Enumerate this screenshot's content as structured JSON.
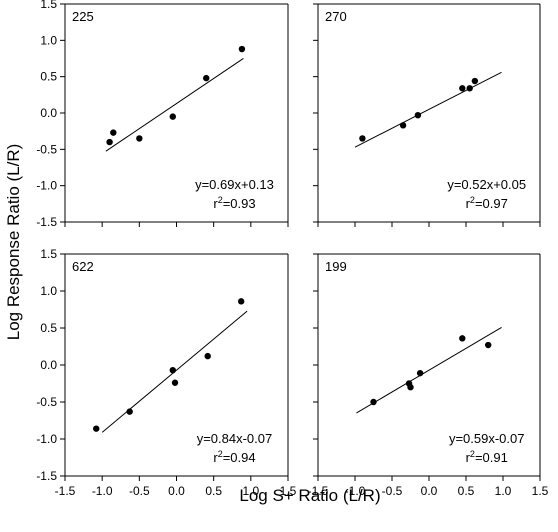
{
  "figure": {
    "xlabel": "Log S+ Ratio (L/R)",
    "ylabel": "Log Response Ratio (L/R)"
  },
  "chart_data": [
    {
      "type": "scatter",
      "panel_label": "225",
      "x": [
        -0.9,
        -0.85,
        -0.5,
        -0.05,
        0.4,
        0.88
      ],
      "y": [
        -0.4,
        -0.27,
        -0.35,
        -0.05,
        0.48,
        0.88
      ],
      "fit": {
        "slope": 0.69,
        "intercept": 0.13,
        "x_range": [
          -0.95,
          0.9
        ]
      },
      "equation": "y=0.69x+0.13",
      "r2_prefix": "r",
      "r2_sup": "2",
      "r2_value": "=0.93",
      "xlim": [
        -1.5,
        1.5
      ],
      "ylim": [
        -1.5,
        1.5
      ],
      "xticks": [
        "-1.5",
        "-1.0",
        "-0.5",
        "0.0",
        "0.5",
        "1.0",
        "1.5"
      ],
      "yticks": [
        "1.5",
        "1.0",
        "0.5",
        "0.0",
        "-0.5",
        "-1.0",
        "-1.5"
      ],
      "grid": false
    },
    {
      "type": "scatter",
      "panel_label": "270",
      "x": [
        -0.9,
        -0.35,
        -0.15,
        0.45,
        0.55,
        0.62
      ],
      "y": [
        -0.35,
        -0.17,
        -0.03,
        0.34,
        0.34,
        0.44
      ],
      "fit": {
        "slope": 0.52,
        "intercept": 0.05,
        "x_range": [
          -1.0,
          0.98
        ]
      },
      "equation": "y=0.52x+0.05",
      "r2_prefix": "r",
      "r2_sup": "2",
      "r2_value": "=0.97",
      "xlim": [
        -1.5,
        1.5
      ],
      "ylim": [
        -1.5,
        1.5
      ],
      "xticks": [
        "-1.5",
        "-1.0",
        "-0.5",
        "0.0",
        "0.5",
        "1.0",
        "1.5"
      ],
      "yticks": [
        "1.5",
        "1.0",
        "0.5",
        "0.0",
        "-0.5",
        "-1.0",
        "-1.5"
      ],
      "grid": false
    },
    {
      "type": "scatter",
      "panel_label": "622",
      "x": [
        -1.08,
        -0.63,
        -0.05,
        -0.02,
        0.42,
        0.87
      ],
      "y": [
        -0.86,
        -0.63,
        -0.07,
        -0.24,
        0.12,
        0.86
      ],
      "fit": {
        "slope": 0.84,
        "intercept": -0.07,
        "x_range": [
          -1.0,
          0.95
        ]
      },
      "equation": "y=0.84x-0.07",
      "r2_prefix": "r",
      "r2_sup": "2",
      "r2_value": "=0.94",
      "xlim": [
        -1.5,
        1.5
      ],
      "ylim": [
        -1.5,
        1.5
      ],
      "xticks": [
        "-1.5",
        "-1.0",
        "-0.5",
        "0.0",
        "0.5",
        "1.0",
        "1.5"
      ],
      "yticks": [
        "1.5",
        "1.0",
        "0.5",
        "0.0",
        "-0.5",
        "-1.0",
        "-1.5"
      ],
      "grid": false
    },
    {
      "type": "scatter",
      "panel_label": "199",
      "x": [
        -0.75,
        -0.27,
        -0.25,
        -0.12,
        0.45,
        0.8
      ],
      "y": [
        -0.5,
        -0.25,
        -0.3,
        -0.11,
        0.36,
        0.27
      ],
      "fit": {
        "slope": 0.59,
        "intercept": -0.07,
        "x_range": [
          -0.98,
          0.98
        ]
      },
      "equation": "y=0.59x-0.07",
      "r2_prefix": "r",
      "r2_sup": "2",
      "r2_value": "=0.91",
      "xlim": [
        -1.5,
        1.5
      ],
      "ylim": [
        -1.5,
        1.5
      ],
      "xticks": [
        "-1.5",
        "-1.0",
        "-0.5",
        "0.0",
        "0.5",
        "1.0",
        "1.5"
      ],
      "yticks": [
        "1.5",
        "1.0",
        "0.5",
        "0.0",
        "-0.5",
        "-1.0",
        "-1.5"
      ],
      "grid": false
    }
  ]
}
